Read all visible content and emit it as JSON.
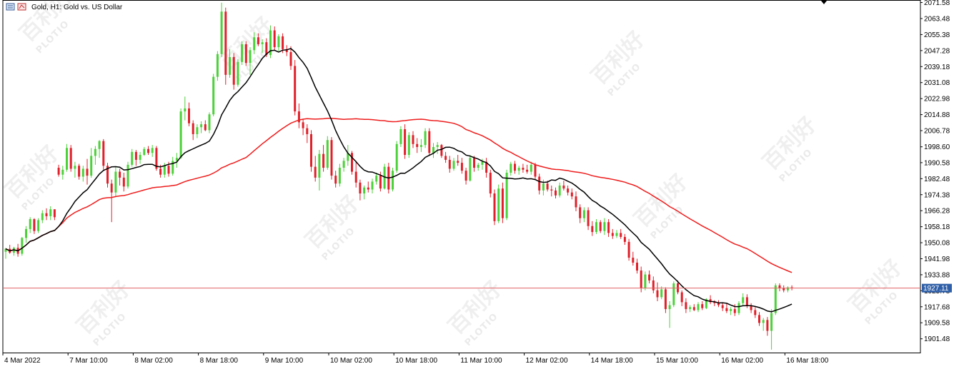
{
  "chart_data": {
    "type": "candlestick",
    "title": "Gold, H1: Gold vs. US Dollar",
    "symbol_icon": "chart-window-icon",
    "current_price_label": "1927.11",
    "current_price": 1927.11,
    "ylim": [
      1894.5,
      2072.5
    ],
    "y_ticks": [
      {
        "value": 2071.58,
        "label": "2071.58"
      },
      {
        "value": 2063.48,
        "label": "2063.48"
      },
      {
        "value": 2055.38,
        "label": "2055.38"
      },
      {
        "value": 2047.28,
        "label": "2047.28"
      },
      {
        "value": 2039.18,
        "label": "2039.18"
      },
      {
        "value": 2031.08,
        "label": "2031.08"
      },
      {
        "value": 2022.98,
        "label": "2022.98"
      },
      {
        "value": 2014.88,
        "label": "2014.88"
      },
      {
        "value": 2006.78,
        "label": "2006.78"
      },
      {
        "value": 1998.6,
        "label": "1998.60"
      },
      {
        "value": 1990.58,
        "label": "1990.58"
      },
      {
        "value": 1982.48,
        "label": "1982.48"
      },
      {
        "value": 1974.38,
        "label": "1974.38"
      },
      {
        "value": 1966.28,
        "label": "1966.28"
      },
      {
        "value": 1958.18,
        "label": "1958.18"
      },
      {
        "value": 1950.08,
        "label": "1950.08"
      },
      {
        "value": 1941.98,
        "label": "1941.98"
      },
      {
        "value": 1933.88,
        "label": "1933.88"
      },
      {
        "value": 1925.78,
        "label": "1925.78"
      },
      {
        "value": 1917.68,
        "label": "1917.68"
      },
      {
        "value": 1909.58,
        "label": "1909.58"
      },
      {
        "value": 1901.48,
        "label": "1901.48"
      }
    ],
    "x_ticks": [
      {
        "bar": 0,
        "label": "4 Mar 2022"
      },
      {
        "bar": 16,
        "label": "7 Mar 10:00"
      },
      {
        "bar": 32,
        "label": "8 Mar 02:00"
      },
      {
        "bar": 48,
        "label": "8 Mar 18:00"
      },
      {
        "bar": 64,
        "label": "9 Mar 10:00"
      },
      {
        "bar": 80,
        "label": "10 Mar 02:00"
      },
      {
        "bar": 96,
        "label": "10 Mar 18:00"
      },
      {
        "bar": 112,
        "label": "11 Mar 10:00"
      },
      {
        "bar": 128,
        "label": "12 Mar 02:00"
      },
      {
        "bar": 144,
        "label": "14 Mar 18:00"
      },
      {
        "bar": 160,
        "label": "15 Mar 10:00"
      },
      {
        "bar": 176,
        "label": "16 Mar 02:00"
      },
      {
        "bar": 192,
        "label": "16 Mar 18:00"
      }
    ],
    "up_color": "#4cd13a",
    "down_color": "#e0202a",
    "ma_fast_color": "#000000",
    "ma_slow_color": "#ee1c1c",
    "price_line_color": "#e06060",
    "price_label_bg": "#2f5fa8",
    "watermark": {
      "cn": "百利好",
      "en": "PLOTIO"
    },
    "candles": [
      [
        1945.5,
        1947.5,
        1942.0,
        1947.0
      ],
      [
        1947.0,
        1949.0,
        1944.5,
        1945.0
      ],
      [
        1945.0,
        1948.0,
        1943.5,
        1947.5
      ],
      [
        1947.5,
        1949.5,
        1943.0,
        1944.5
      ],
      [
        1944.5,
        1953.0,
        1943.5,
        1952.5
      ],
      [
        1952.5,
        1958.5,
        1950.0,
        1957.0
      ],
      [
        1957.0,
        1963.0,
        1955.0,
        1962.0
      ],
      [
        1962.0,
        1962.5,
        1954.5,
        1956.0
      ],
      [
        1956.0,
        1962.5,
        1955.0,
        1961.5
      ],
      [
        1961.5,
        1966.5,
        1960.0,
        1965.0
      ],
      [
        1965.0,
        1967.5,
        1961.5,
        1963.5
      ],
      [
        1963.5,
        1968.5,
        1961.5,
        1967.0
      ],
      [
        1967.0,
        1966.5,
        1961.5,
        1963.0
      ],
      [
        1988.0,
        1989.5,
        1983.5,
        1984.5
      ],
      [
        1984.5,
        1989.0,
        1982.0,
        1987.0
      ],
      [
        1987.0,
        2000.0,
        1986.0,
        1998.0
      ],
      [
        1998.0,
        1999.5,
        1986.0,
        1987.5
      ],
      [
        1987.5,
        1991.0,
        1983.0,
        1989.0
      ],
      [
        1989.0,
        1990.0,
        1982.0,
        1983.5
      ],
      [
        1983.5,
        1989.0,
        1981.0,
        1987.5
      ],
      [
        1987.5,
        1992.5,
        1979.5,
        1984.0
      ],
      [
        1984.0,
        1998.0,
        1983.0,
        1994.0
      ],
      [
        1994.0,
        1999.0,
        1989.5,
        1997.5
      ],
      [
        1997.5,
        2002.0,
        1993.0,
        2001.5
      ],
      [
        2001.5,
        2002.5,
        1987.0,
        1989.0
      ],
      [
        1989.0,
        1990.5,
        1978.0,
        1980.0
      ],
      [
        1980.0,
        1982.0,
        1960.5,
        1975.5
      ],
      [
        1975.5,
        1988.5,
        1973.5,
        1986.0
      ],
      [
        1986.0,
        1987.5,
        1979.0,
        1983.0
      ],
      [
        1983.0,
        1985.5,
        1976.0,
        1978.5
      ],
      [
        1978.5,
        1991.0,
        1977.5,
        1989.5
      ],
      [
        1989.5,
        1997.5,
        1988.5,
        1996.0
      ],
      [
        1996.0,
        1997.0,
        1989.0,
        1992.0
      ],
      [
        1992.0,
        1996.0,
        1990.0,
        1994.5
      ],
      [
        1994.5,
        1998.5,
        1994.0,
        1997.5
      ],
      [
        1997.5,
        1999.0,
        1994.5,
        1995.5
      ],
      [
        1995.5,
        1999.5,
        1993.5,
        1998.0
      ],
      [
        1998.0,
        1999.0,
        1986.5,
        1987.5
      ],
      [
        1987.5,
        1989.5,
        1983.0,
        1984.5
      ],
      [
        1984.5,
        1990.5,
        1983.0,
        1989.0
      ],
      [
        1989.0,
        1991.0,
        1983.5,
        1985.0
      ],
      [
        1985.0,
        1993.5,
        1984.0,
        1991.5
      ],
      [
        1991.5,
        1995.5,
        1988.0,
        1993.0
      ],
      [
        1993.0,
        2018.0,
        1992.5,
        2016.5
      ],
      [
        2016.5,
        2024.0,
        2012.0,
        2018.0
      ],
      [
        2018.0,
        2021.0,
        2009.0,
        2010.5
      ],
      [
        2010.5,
        2012.0,
        2002.0,
        2005.0
      ],
      [
        2005.0,
        2010.0,
        2003.0,
        2008.5
      ],
      [
        2008.5,
        2011.5,
        2005.5,
        2010.0
      ],
      [
        2010.0,
        2012.0,
        2006.5,
        2007.0
      ],
      [
        2007.0,
        2016.0,
        2005.5,
        2015.0
      ],
      [
        2015.0,
        2035.5,
        2014.0,
        2034.0
      ],
      [
        2034.0,
        2047.0,
        2032.0,
        2045.5
      ],
      [
        2045.5,
        2071.5,
        2044.0,
        2067.0
      ],
      [
        2067.0,
        2069.0,
        2030.0,
        2035.0
      ],
      [
        2035.0,
        2048.0,
        2033.5,
        2044.0
      ],
      [
        2044.0,
        2046.0,
        2027.5,
        2030.0
      ],
      [
        2030.0,
        2043.0,
        2029.0,
        2041.5
      ],
      [
        2041.5,
        2052.0,
        2040.0,
        2050.5
      ],
      [
        2050.5,
        2052.0,
        2039.5,
        2041.0
      ],
      [
        2041.0,
        2049.0,
        2035.0,
        2047.5
      ],
      [
        2047.5,
        2056.5,
        2045.5,
        2054.0
      ],
      [
        2054.0,
        2056.0,
        2049.5,
        2050.5
      ],
      [
        2050.5,
        2053.0,
        2046.0,
        2051.5
      ],
      [
        2051.5,
        2053.5,
        2044.0,
        2045.0
      ],
      [
        2045.0,
        2060.0,
        2043.5,
        2057.5
      ],
      [
        2057.5,
        2059.5,
        2047.5,
        2049.0
      ],
      [
        2049.0,
        2055.5,
        2047.0,
        2054.5
      ],
      [
        2054.5,
        2056.0,
        2046.0,
        2048.0
      ],
      [
        2048.0,
        2050.0,
        2044.5,
        2046.5
      ],
      [
        2046.5,
        2049.5,
        2037.5,
        2039.5
      ],
      [
        2039.5,
        2042.5,
        2014.5,
        2016.5
      ],
      [
        2016.5,
        2020.5,
        2008.0,
        2011.0
      ],
      [
        2011.0,
        2012.5,
        2004.5,
        2008.0
      ],
      [
        2008.0,
        2010.0,
        2000.5,
        2005.0
      ],
      [
        2005.0,
        2007.0,
        1986.0,
        1988.5
      ],
      [
        1988.5,
        1994.0,
        1981.0,
        1983.0
      ],
      [
        1983.0,
        1997.0,
        1976.5,
        1995.0
      ],
      [
        1995.0,
        1999.5,
        1986.0,
        1988.0
      ],
      [
        1988.0,
        2004.0,
        1987.0,
        2002.0
      ],
      [
        2002.0,
        2003.5,
        1982.0,
        1984.0
      ],
      [
        1984.0,
        1986.5,
        1978.0,
        1980.0
      ],
      [
        1980.0,
        1990.0,
        1978.5,
        1988.0
      ],
      [
        1988.0,
        1993.0,
        1986.0,
        1991.5
      ],
      [
        1991.5,
        1999.5,
        1989.0,
        1995.5
      ],
      [
        1995.5,
        1996.5,
        1984.5,
        1986.0
      ],
      [
        1986.0,
        1991.5,
        1978.0,
        1980.5
      ],
      [
        1980.5,
        1982.0,
        1971.5,
        1975.0
      ],
      [
        1975.0,
        1979.0,
        1972.0,
        1978.0
      ],
      [
        1978.0,
        1981.0,
        1975.5,
        1977.0
      ],
      [
        1977.0,
        1982.5,
        1975.0,
        1981.0
      ],
      [
        1981.0,
        1985.5,
        1979.5,
        1984.0
      ],
      [
        1984.0,
        1986.0,
        1976.0,
        1977.5
      ],
      [
        1977.5,
        1990.0,
        1977.0,
        1988.5
      ],
      [
        1988.5,
        1990.5,
        1975.0,
        1977.0
      ],
      [
        1977.0,
        1988.0,
        1976.0,
        1986.5
      ],
      [
        1986.5,
        2001.5,
        1985.5,
        2000.0
      ],
      [
        2000.0,
        2009.0,
        1998.5,
        2007.5
      ],
      [
        2007.5,
        2010.0,
        1992.5,
        1994.5
      ],
      [
        1994.5,
        2006.0,
        1993.0,
        2004.5
      ],
      [
        2004.5,
        2006.5,
        1998.0,
        2000.0
      ],
      [
        2000.0,
        2003.0,
        1995.5,
        1998.5
      ],
      [
        1998.5,
        2002.5,
        1996.0,
        1999.5
      ],
      [
        1999.5,
        2008.0,
        1998.0,
        2006.5
      ],
      [
        2006.5,
        2008.0,
        1994.0,
        1995.5
      ],
      [
        1995.5,
        2000.5,
        1993.0,
        1998.5
      ],
      [
        1998.5,
        2001.0,
        1995.0,
        1999.5
      ],
      [
        1999.5,
        2000.0,
        1993.0,
        1994.0
      ],
      [
        1994.0,
        1996.0,
        1990.5,
        1992.0
      ],
      [
        1992.0,
        1994.0,
        1985.5,
        1987.5
      ],
      [
        1987.5,
        1993.0,
        1986.5,
        1991.5
      ],
      [
        1991.5,
        1994.5,
        1989.0,
        1990.5
      ],
      [
        1990.5,
        1993.0,
        1985.0,
        1986.5
      ],
      [
        1986.5,
        1988.0,
        1979.5,
        1981.5
      ],
      [
        1981.5,
        1994.5,
        1981.0,
        1993.0
      ],
      [
        1993.0,
        1994.0,
        1986.0,
        1988.0
      ],
      [
        1988.0,
        1990.5,
        1986.5,
        1989.5
      ],
      [
        1989.5,
        1992.5,
        1987.0,
        1991.0
      ],
      [
        1991.0,
        1993.0,
        1983.0,
        1985.5
      ],
      [
        1985.5,
        1987.0,
        1973.0,
        1975.0
      ],
      [
        1975.0,
        1977.0,
        1959.0,
        1961.0
      ],
      [
        1961.0,
        1979.5,
        1960.0,
        1977.5
      ],
      [
        1977.5,
        1980.5,
        1960.0,
        1962.5
      ],
      [
        1962.5,
        1987.0,
        1961.5,
        1985.5
      ],
      [
        1985.5,
        1991.0,
        1984.0,
        1990.0
      ],
      [
        1990.0,
        1991.5,
        1985.0,
        1986.5
      ],
      [
        1986.5,
        1989.0,
        1984.5,
        1988.0
      ],
      [
        1988.0,
        1990.0,
        1985.5,
        1987.0
      ],
      [
        1987.0,
        1989.5,
        1985.0,
        1986.0
      ],
      [
        1986.0,
        1991.0,
        1984.5,
        1989.5
      ],
      [
        1989.5,
        1990.5,
        1982.0,
        1983.5
      ],
      [
        1983.5,
        1985.0,
        1974.5,
        1976.5
      ],
      [
        1976.5,
        1982.0,
        1974.0,
        1980.0
      ],
      [
        1980.0,
        1981.5,
        1976.0,
        1977.0
      ],
      [
        1977.0,
        1979.0,
        1973.5,
        1976.5
      ],
      [
        1976.5,
        1978.0,
        1972.5,
        1974.0
      ],
      [
        1974.0,
        1980.5,
        1973.0,
        1979.0
      ],
      [
        1979.0,
        1981.5,
        1976.5,
        1977.5
      ],
      [
        1977.5,
        1979.0,
        1974.0,
        1975.5
      ],
      [
        1975.5,
        1977.5,
        1972.0,
        1973.5
      ],
      [
        1973.5,
        1976.0,
        1966.0,
        1968.0
      ],
      [
        1968.0,
        1969.5,
        1960.0,
        1962.5
      ],
      [
        1962.5,
        1968.0,
        1960.5,
        1966.5
      ],
      [
        1966.5,
        1968.0,
        1956.5,
        1958.5
      ],
      [
        1958.5,
        1961.0,
        1953.5,
        1955.5
      ],
      [
        1955.5,
        1962.0,
        1954.5,
        1960.5
      ],
      [
        1960.5,
        1961.5,
        1955.0,
        1956.0
      ],
      [
        1956.0,
        1962.5,
        1954.0,
        1960.5
      ],
      [
        1960.5,
        1962.0,
        1953.0,
        1955.0
      ],
      [
        1955.0,
        1957.0,
        1952.0,
        1953.5
      ],
      [
        1953.5,
        1956.5,
        1952.5,
        1955.0
      ],
      [
        1955.0,
        1957.0,
        1952.0,
        1953.0
      ],
      [
        1953.0,
        1954.5,
        1949.0,
        1950.5
      ],
      [
        1950.5,
        1952.0,
        1941.0,
        1942.5
      ],
      [
        1942.5,
        1945.5,
        1938.5,
        1940.0
      ],
      [
        1940.0,
        1942.0,
        1934.5,
        1936.0
      ],
      [
        1936.0,
        1938.0,
        1925.0,
        1927.0
      ],
      [
        1927.0,
        1935.5,
        1926.0,
        1934.0
      ],
      [
        1934.0,
        1936.0,
        1929.5,
        1931.0
      ],
      [
        1931.0,
        1933.0,
        1924.5,
        1926.0
      ],
      [
        1926.0,
        1930.0,
        1920.5,
        1922.5
      ],
      [
        1922.5,
        1928.0,
        1921.5,
        1926.5
      ],
      [
        1926.5,
        1927.5,
        1914.5,
        1916.5
      ],
      [
        1916.5,
        1920.5,
        1907.0,
        1918.5
      ],
      [
        1918.5,
        1930.5,
        1917.5,
        1929.5
      ],
      [
        1929.5,
        1931.0,
        1924.0,
        1925.0
      ],
      [
        1925.0,
        1926.0,
        1918.0,
        1920.0
      ],
      [
        1920.0,
        1922.0,
        1914.5,
        1916.5
      ],
      [
        1916.5,
        1918.5,
        1915.0,
        1917.5
      ],
      [
        1917.5,
        1919.0,
        1915.5,
        1916.0
      ],
      [
        1916.0,
        1920.0,
        1915.0,
        1919.0
      ],
      [
        1919.0,
        1920.5,
        1916.0,
        1917.0
      ],
      [
        1917.0,
        1922.0,
        1916.5,
        1921.5
      ],
      [
        1921.5,
        1923.5,
        1919.0,
        1920.0
      ],
      [
        1920.0,
        1921.0,
        1918.0,
        1919.5
      ],
      [
        1919.5,
        1921.0,
        1917.5,
        1918.5
      ],
      [
        1918.5,
        1920.0,
        1915.5,
        1917.0
      ],
      [
        1917.0,
        1919.5,
        1914.5,
        1915.5
      ],
      [
        1915.5,
        1917.5,
        1913.5,
        1916.5
      ],
      [
        1916.5,
        1919.0,
        1913.0,
        1914.5
      ],
      [
        1914.5,
        1920.5,
        1913.5,
        1919.5
      ],
      [
        1919.5,
        1924.5,
        1918.0,
        1922.5
      ],
      [
        1922.5,
        1924.0,
        1917.0,
        1918.0
      ],
      [
        1918.0,
        1919.5,
        1914.5,
        1916.0
      ],
      [
        1916.0,
        1917.5,
        1912.0,
        1913.5
      ],
      [
        1913.5,
        1915.0,
        1908.0,
        1909.5
      ],
      [
        1909.5,
        1912.0,
        1905.5,
        1911.0
      ],
      [
        1911.0,
        1912.5,
        1903.0,
        1905.5
      ],
      [
        1905.5,
        1916.5,
        1896.0,
        1914.5
      ],
      [
        1914.5,
        1929.5,
        1913.5,
        1928.5
      ],
      [
        1928.5,
        1929.5,
        1925.5,
        1927.0
      ],
      [
        1927.0,
        1928.5,
        1925.0,
        1926.0
      ],
      [
        1926.0,
        1928.0,
        1925.0,
        1927.5
      ],
      [
        1927.5,
        1928.5,
        1926.0,
        1927.11
      ]
    ]
  }
}
